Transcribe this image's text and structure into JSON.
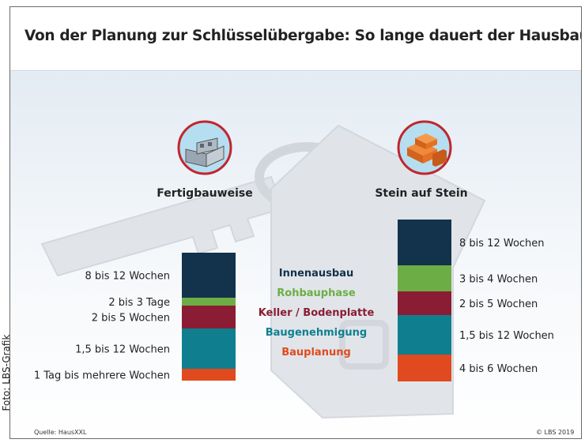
{
  "title": "Von der Planung zur Schlüsselübergabe: So lange dauert der Hausbau",
  "photo_credit": "Foto: LBS-Grafik",
  "source": "Quelle: HausXXL",
  "copyright": "© LBS 2019",
  "colors": {
    "Innenausbau": "#13324b",
    "Rohbauphase": "#6cae45",
    "Keller / Bodenplatte": "#8a1d33",
    "Baugenehmigung": "#0f7f8f",
    "Bauplanung": "#e04a1e"
  },
  "icons": {
    "left": "prefab-house-panels-icon",
    "right": "brick-stack-icon"
  },
  "chart_data": {
    "type": "bar",
    "stacked": true,
    "categories": [
      "Fertigbauweise",
      "Stein auf Stein"
    ],
    "phases": [
      "Innenausbau",
      "Rohbauphase",
      "Keller / Bodenplatte",
      "Baugenehmigung",
      "Bauplanung"
    ],
    "bars": [
      {
        "name": "Fertigbauweise",
        "segments": [
          {
            "phase": "Innenausbau",
            "label": "8 bis 12 Wochen"
          },
          {
            "phase": "Rohbauphase",
            "label": "2 bis 3 Tage"
          },
          {
            "phase": "Keller / Bodenplatte",
            "label": "2 bis 5 Wochen"
          },
          {
            "phase": "Baugenehmigung",
            "label": "1,5 bis 12 Wochen"
          },
          {
            "phase": "Bauplanung",
            "label": "1 Tag bis mehrere Wochen"
          }
        ]
      },
      {
        "name": "Stein auf Stein",
        "segments": [
          {
            "phase": "Innenausbau",
            "label": "8 bis 12 Wochen"
          },
          {
            "phase": "Rohbauphase",
            "label": "3 bis 4 Wochen"
          },
          {
            "phase": "Keller / Bodenplatte",
            "label": "2 bis 5 Wochen"
          },
          {
            "phase": "Baugenehmigung",
            "label": "1,5 bis 12 Wochen"
          },
          {
            "phase": "Bauplanung",
            "label": "4 bis 6 Wochen"
          }
        ]
      }
    ],
    "legend_placement": "center"
  }
}
